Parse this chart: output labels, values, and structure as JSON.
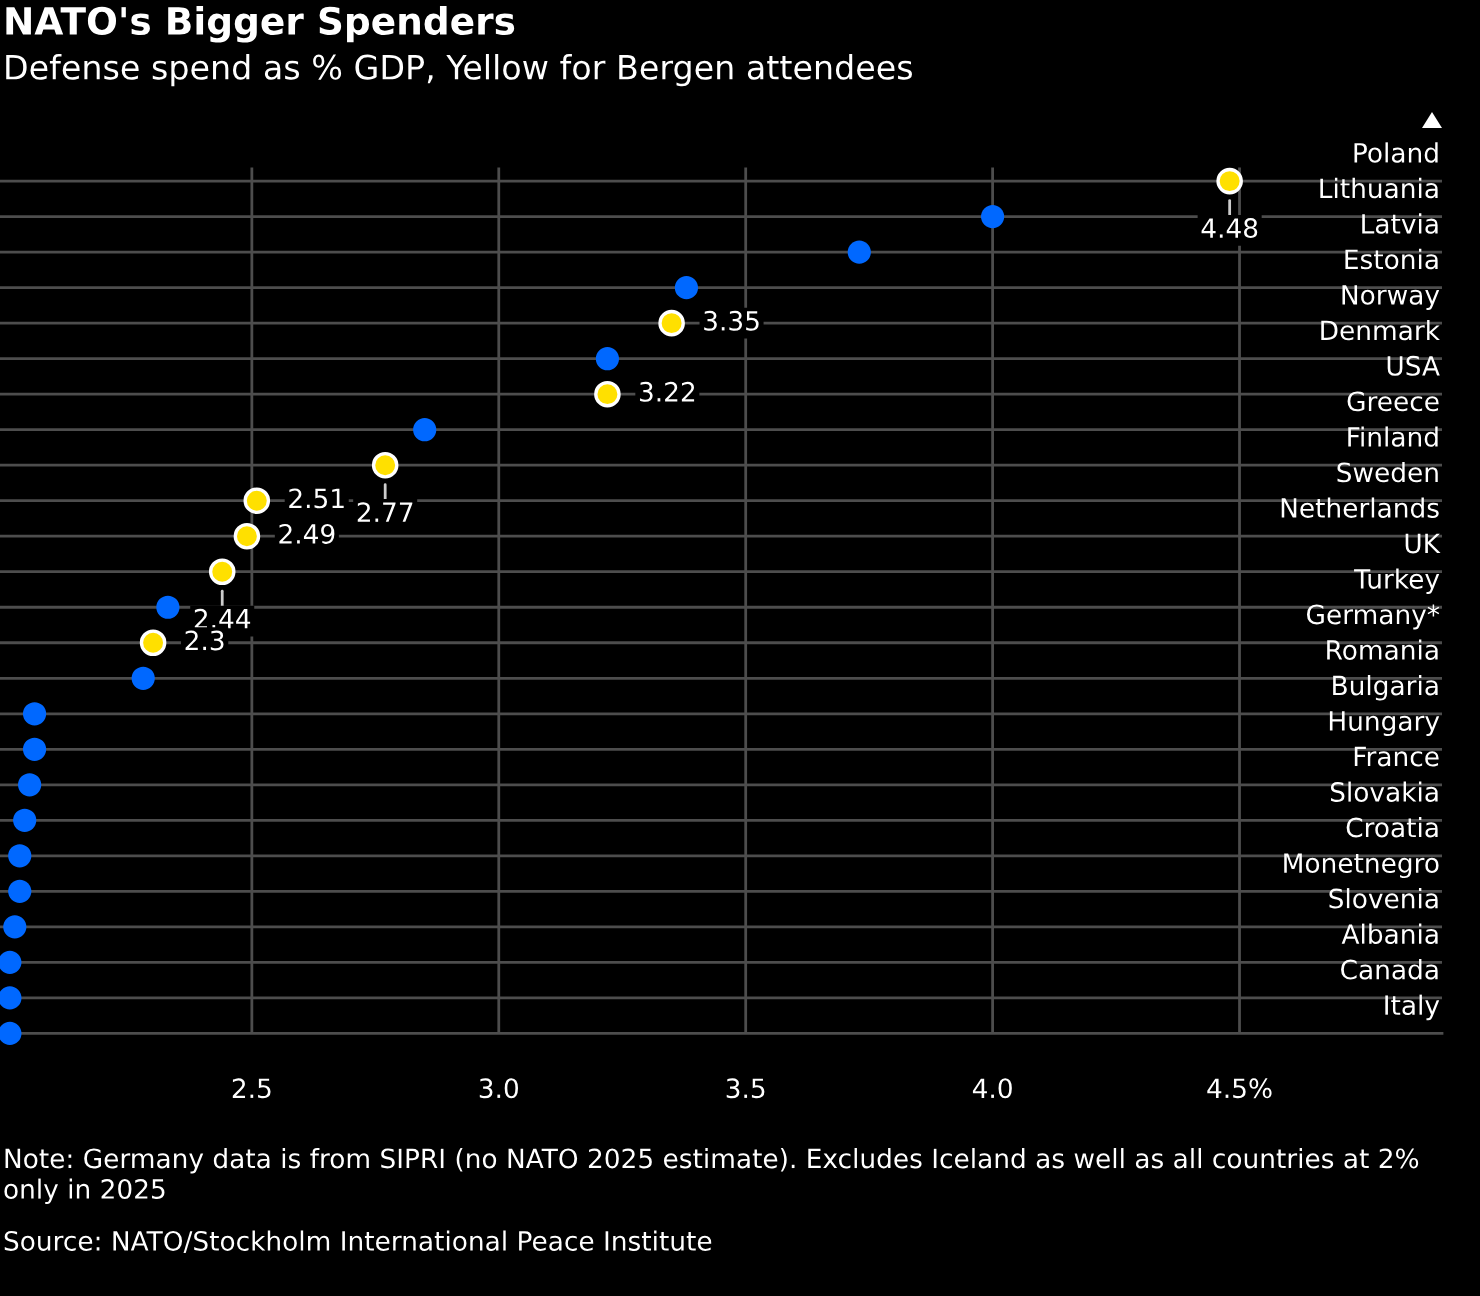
{
  "chart_data": {
    "type": "scatter",
    "orientation": "horizontal",
    "title": "NATO's Bigger Spenders",
    "subtitle": "Defense spend as % GDP, Yellow for Bergen attendees",
    "categories": [
      "Poland",
      "Lithuania",
      "Latvia",
      "Estonia",
      "Norway",
      "Denmark",
      "USA",
      "Greece",
      "Finland",
      "Sweden",
      "Netherlands",
      "UK",
      "Turkey",
      "Germany*",
      "Romania",
      "Bulgaria",
      "Hungary",
      "France",
      "Slovakia",
      "Croatia",
      "Monetnegro",
      "Slovenia",
      "Albania",
      "Canada",
      "Italy"
    ],
    "values": [
      4.48,
      4.0,
      3.73,
      3.38,
      3.35,
      3.22,
      3.22,
      2.85,
      2.77,
      2.51,
      2.49,
      2.44,
      2.33,
      2.3,
      2.28,
      2.06,
      2.06,
      2.05,
      2.04,
      2.03,
      2.03,
      2.02,
      2.01,
      2.01,
      2.01
    ],
    "colors": [
      "#ffe000",
      "#0068ff",
      "#0068ff",
      "#0068ff",
      "#ffe000",
      "#0068ff",
      "#ffe000",
      "#0068ff",
      "#ffe000",
      "#ffe000",
      "#ffe000",
      "#ffe000",
      "#0068ff",
      "#ffe000",
      "#0068ff",
      "#0068ff",
      "#0068ff",
      "#0068ff",
      "#0068ff",
      "#0068ff",
      "#0068ff",
      "#0068ff",
      "#0068ff",
      "#0068ff",
      "#0068ff"
    ],
    "value_labels": [
      "4.48",
      null,
      null,
      null,
      "3.35",
      null,
      "3.22",
      null,
      "2.77",
      "2.51",
      "2.49",
      "2.44",
      null,
      "2.3",
      null,
      null,
      null,
      null,
      null,
      null,
      null,
      null,
      null,
      null,
      null
    ],
    "xlim": [
      1.99,
      4.91
    ],
    "xticks": [
      {
        "value": 2.5,
        "label": "2.5"
      },
      {
        "value": 3,
        "label": "3.0"
      },
      {
        "value": 3.5,
        "label": "3.5"
      },
      {
        "value": 4,
        "label": "4.0"
      },
      {
        "value": 4.5,
        "label": "4.5%"
      }
    ],
    "grid": true,
    "marker": "circle",
    "annotations": [
      "Note: Germany data is from SIPRI (no NATO 2025 estimate). Excludes Iceland as well as all countries at 2% only in 2025",
      "Source: NATO/Stockholm International Peace Institute"
    ]
  }
}
